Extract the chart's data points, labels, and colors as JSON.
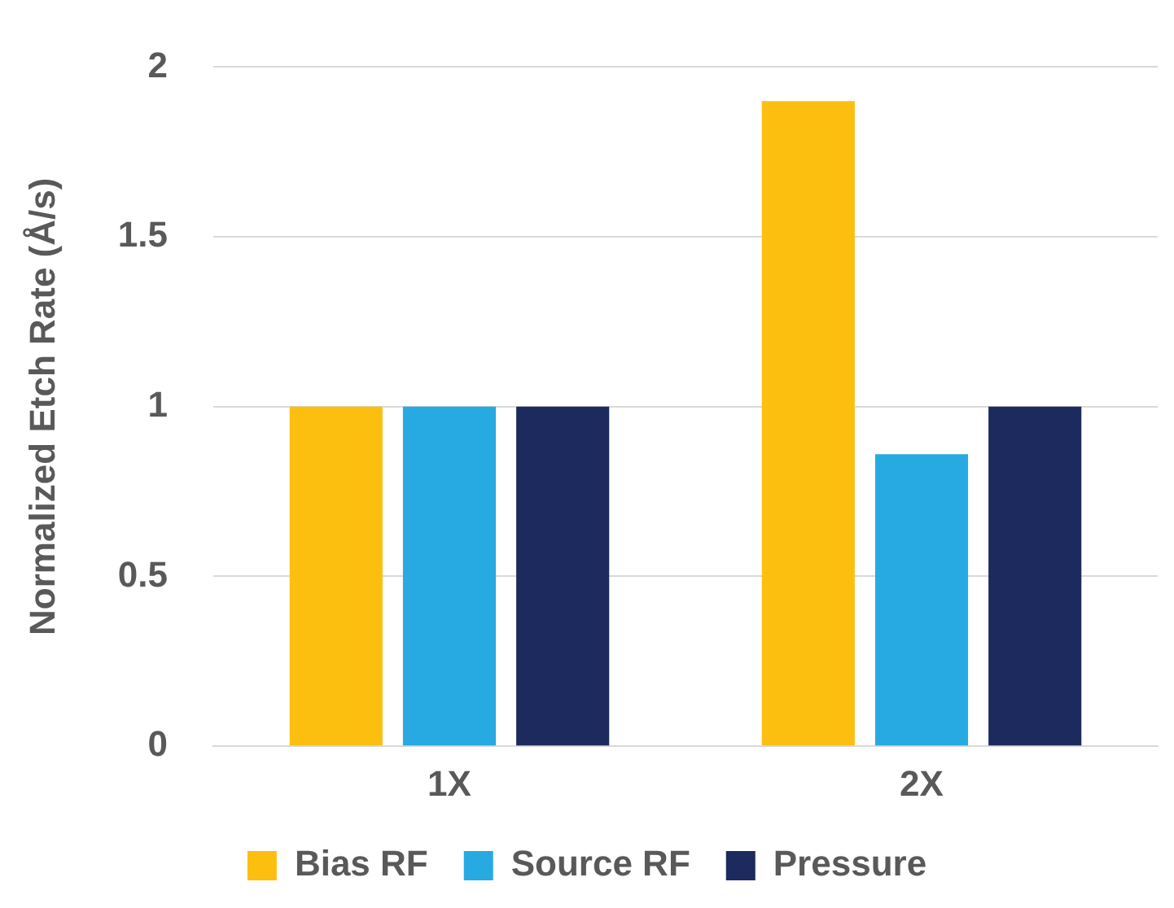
{
  "chart_data": {
    "type": "bar",
    "ylabel": "Normalized Etch Rate (Å/s)",
    "categories": [
      "1X",
      "2X"
    ],
    "series": [
      {
        "name": "Bias RF",
        "color": "#fcbf10",
        "values": [
          1,
          1.9
        ]
      },
      {
        "name": "Source RF",
        "color": "#27aae1",
        "values": [
          1,
          0.86
        ]
      },
      {
        "name": "Pressure",
        "color": "#1c2a5e",
        "values": [
          1,
          1
        ]
      }
    ],
    "ylim": [
      0,
      2
    ],
    "yticks": [
      0,
      0.5,
      1,
      1.5,
      2
    ],
    "grid": "y",
    "legend": "bottom"
  }
}
